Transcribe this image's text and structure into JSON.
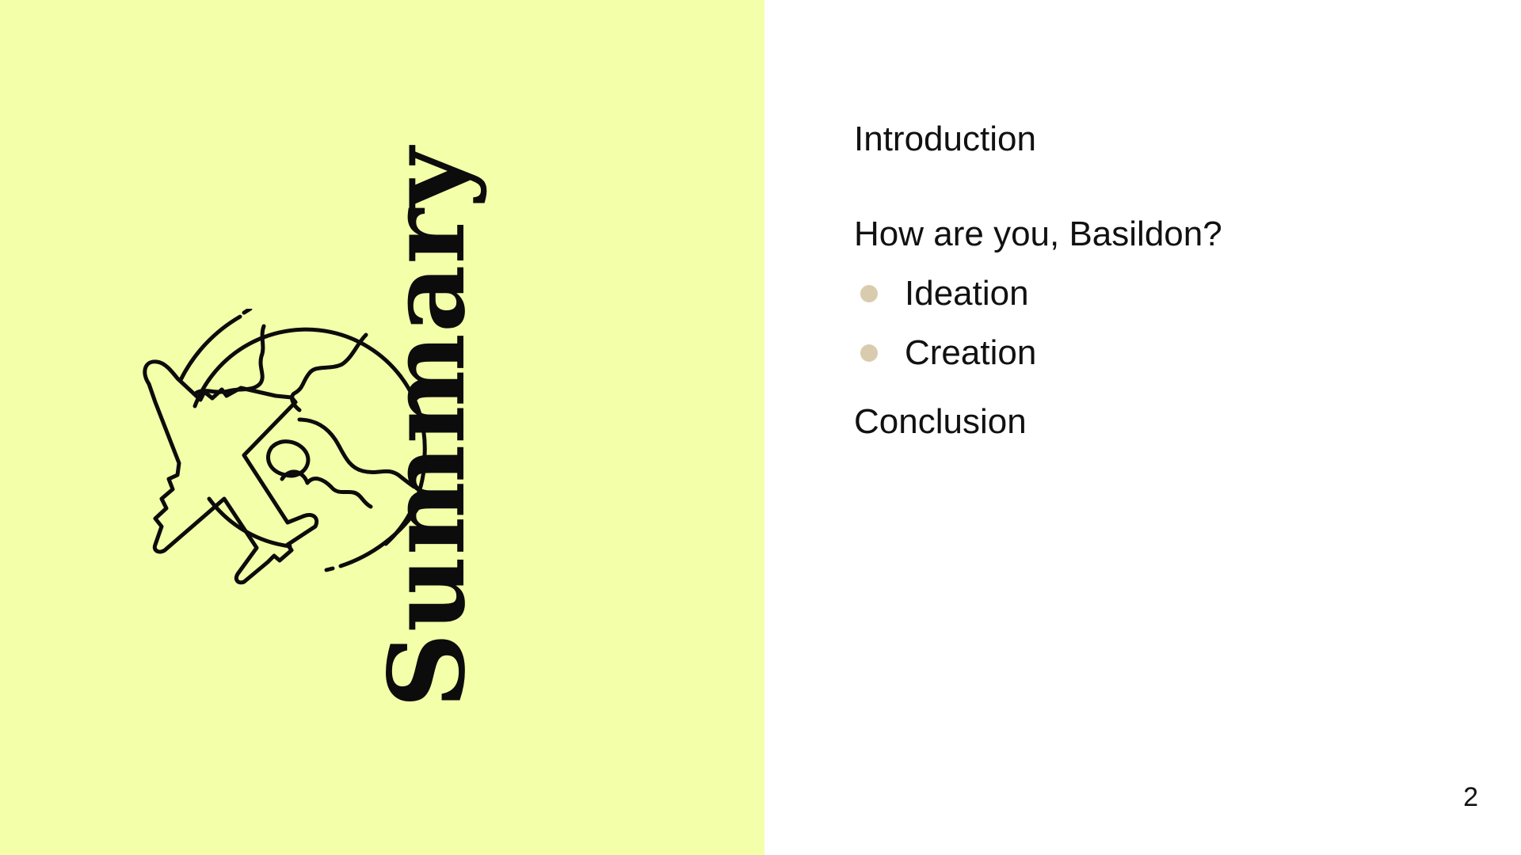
{
  "slide": {
    "title": "Summary",
    "page_number": "2",
    "colors": {
      "left_panel": "#f4ffa9",
      "bullet": "#d9cbad",
      "text": "#111111"
    },
    "illustration": "globe-airplane-icon"
  },
  "agenda": {
    "sections": [
      {
        "heading": "Introduction"
      },
      {
        "heading": "How are you, Basildon?",
        "items": [
          "Ideation",
          "Creation"
        ]
      },
      {
        "heading": "Conclusion"
      }
    ]
  }
}
